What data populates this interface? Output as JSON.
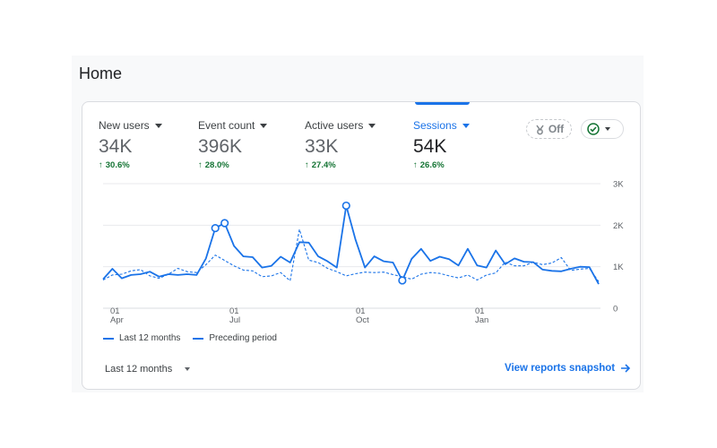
{
  "page": {
    "title": "Home"
  },
  "metrics": [
    {
      "label": "New users",
      "value": "34K",
      "change": "30.6%"
    },
    {
      "label": "Event count",
      "value": "396K",
      "change": "28.0%"
    },
    {
      "label": "Active users",
      "value": "33K",
      "change": "27.4%"
    },
    {
      "label": "Sessions",
      "value": "54K",
      "change": "26.6%"
    }
  ],
  "insights_toggle": {
    "label": "Off",
    "icon": "insights-icon"
  },
  "status_button": {
    "icon": "check-circle-icon"
  },
  "legend": {
    "current": "Last 12 months",
    "previous": "Preceding period"
  },
  "footer": {
    "date_range": "Last 12 months",
    "link": "View reports snapshot"
  },
  "colors": {
    "accent": "#1a73e8",
    "positive": "#137333"
  },
  "chart_data": {
    "type": "line",
    "x_tick_labels": [
      {
        "day": "01",
        "month": "Apr"
      },
      {
        "day": "01",
        "month": "Jul"
      },
      {
        "day": "01",
        "month": "Oct"
      },
      {
        "day": "01",
        "month": "Jan"
      }
    ],
    "y_tick_labels": [
      "3K",
      "2K",
      "1K",
      "0"
    ],
    "ylim": [
      0,
      3000
    ],
    "grid": true,
    "legend_position": "bottom-left",
    "series": [
      {
        "name": "Last 12 months",
        "style": "solid",
        "values": [
          700,
          950,
          720,
          800,
          820,
          880,
          760,
          820,
          800,
          820,
          800,
          1200,
          1930,
          2050,
          1500,
          1250,
          1230,
          980,
          1020,
          1240,
          1100,
          1590,
          1580,
          1250,
          1130,
          980,
          2470,
          1650,
          980,
          1250,
          1130,
          1100,
          670,
          1190,
          1430,
          1140,
          1240,
          1180,
          1030,
          1430,
          1030,
          980,
          1390,
          1060,
          1200,
          1120,
          1110,
          930,
          900,
          890,
          950,
          1000,
          990,
          580
        ],
        "markers": [
          12,
          13,
          26,
          32
        ]
      },
      {
        "name": "Preceding period",
        "style": "dashed",
        "values": [
          680,
          800,
          820,
          900,
          930,
          780,
          720,
          820,
          960,
          880,
          860,
          1050,
          1280,
          1150,
          1020,
          920,
          900,
          760,
          780,
          860,
          660,
          1900,
          1160,
          1100,
          960,
          880,
          780,
          830,
          870,
          860,
          870,
          810,
          760,
          700,
          820,
          860,
          840,
          780,
          730,
          800,
          680,
          800,
          850,
          1110,
          1020,
          1020,
          1110,
          1050,
          1090,
          1220,
          910,
          940,
          960,
          640
        ]
      }
    ]
  }
}
